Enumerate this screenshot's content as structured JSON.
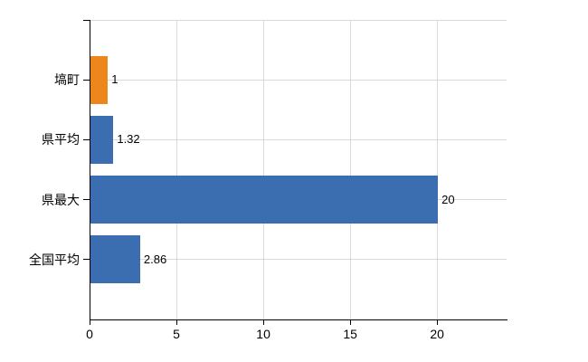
{
  "chart_data": {
    "type": "bar",
    "orientation": "horizontal",
    "title": "",
    "categories": [
      "塙町",
      "県平均",
      "県最大",
      "全国平均"
    ],
    "values": [
      1,
      1.32,
      20,
      2.86
    ],
    "value_labels": [
      "1",
      "1.32",
      "20",
      "2.86"
    ],
    "bar_colors": [
      "#EC861D",
      "#3B6EB1",
      "#3B6EB1",
      "#3B6EB1"
    ],
    "x_axis": {
      "ticks": [
        0,
        5,
        10,
        15,
        20
      ],
      "tick_labels": [
        "0",
        "5",
        "10",
        "15",
        "20"
      ],
      "range": [
        0,
        24
      ]
    },
    "y_axis": {
      "label": ""
    },
    "legend": false,
    "grid": true,
    "colors": {
      "highlight_orange": "#EC861D",
      "series_blue": "#3B6EB1",
      "grid": "#D9D9D9",
      "axis": "#000000",
      "text": "#000000",
      "background": "#FFFFFF"
    }
  }
}
